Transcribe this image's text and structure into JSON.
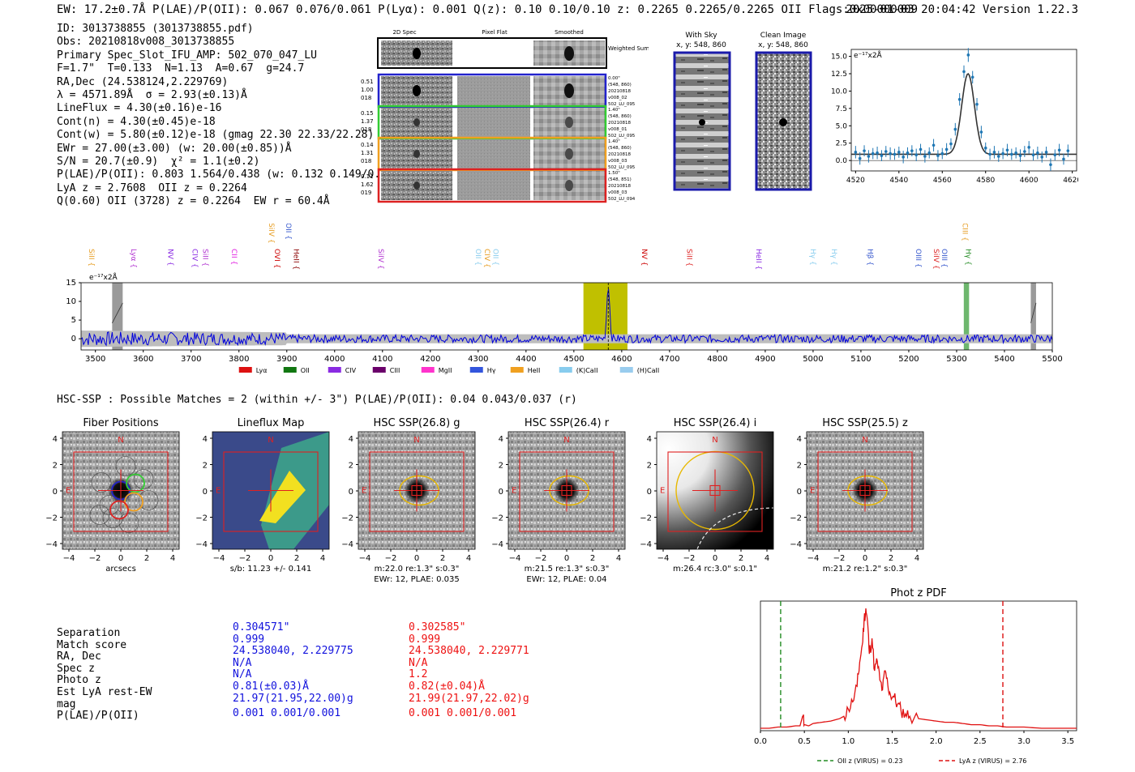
{
  "header": {
    "left": "EW: 17.2±0.7Å  P(LAE)/P(OII): 0.067 0.076/0.061  P(Lyα): 0.001  Q(z): 0.10 0.10/0.10  z: 0.2265 0.2265/0.2265 OII  Flags:0x00000009",
    "right": "2025-01-03 20:04:42  Version 1.22.3"
  },
  "info": {
    "lines": [
      "ID: 3013738855 (3013738855.pdf)",
      "Obs: 20210818v008_3013738855",
      "Primary Spec_Slot_IFU_AMP: 502_070_047_LU",
      "F=1.7\"  T=0.133  N=1.13  A=0.67  g=24.7",
      "RA,Dec (24.538124,2.229769)",
      "λ = 4571.89Å  σ = 2.93(±0.13)Å",
      "LineFlux = 4.30(±0.16)e-16",
      "Cont(n) = 4.30(±0.45)e-18",
      "Cont(w) = 5.80(±0.12)e-18 (gmag 22.30 22.33/22.28)",
      "EWr = 27.00(±3.00) (w: 20.00(±0.85))Å",
      "S/N = 20.7(±0.9)  χ² = 1.1(±0.2)",
      "P(LAE)/P(OII): 0.803 1.564/0.438 (w: 0.132 0.149/0.119)",
      "LyA z = 2.7608  OII z = 0.2264",
      "Q(0.60) OII (3728) z = 0.2264  EW r = 60.4Å"
    ]
  },
  "cutouts": {
    "col_titles": [
      "2D Spec",
      "Pixel Flat",
      "Smoothed"
    ],
    "weighted_sum": "Weighted Sum",
    "rows": [
      {
        "left": [
          "0.51",
          "1.00",
          "018"
        ],
        "right": [
          "0.00\"",
          "(548, 860)",
          "20210818",
          "v008_02",
          "502_LU_095"
        ],
        "color": "#2222cc"
      },
      {
        "left": [
          "0.15",
          "1.37",
          "018"
        ],
        "right": [
          "1.40\"",
          "(548, 860)",
          "20210818",
          "v008_01",
          "502_LU_095"
        ],
        "color": "#33cc33"
      },
      {
        "left": [
          "0.14",
          "1.31",
          "018"
        ],
        "right": [
          "1.40\"",
          "(548, 860)",
          "20210818",
          "v008_03",
          "502_LU_095"
        ],
        "color": "#f0a020"
      },
      {
        "left": [
          "0.11",
          "1.62",
          "019"
        ],
        "right": [
          "1.50\"",
          "(548, 851)",
          "20210818",
          "v008_03",
          "502_LU_094"
        ],
        "color": "#dd2222"
      }
    ]
  },
  "sky": {
    "title": "With Sky",
    "coords": "x, y: 548, 860"
  },
  "clean": {
    "title": "Clean Image",
    "coords": "x, y: 548, 860"
  },
  "icons": {
    "wavelength_marker": "dashed-line-marker"
  },
  "chart_data": [
    {
      "type": "line",
      "name": "line-fit",
      "yunit": "e⁻¹⁷x2Å",
      "xlim": [
        4518,
        4622
      ],
      "ylim": [
        -1.5,
        16
      ],
      "xticks": [
        4520,
        4540,
        4560,
        4580,
        4600,
        4620
      ],
      "yticks": [
        0.0,
        2.5,
        5.0,
        7.5,
        10.0,
        12.5,
        15.0
      ],
      "ytick_labels": [
        "0.0",
        "2.5",
        "5.0",
        "7.5",
        "10.0",
        "12.5",
        "15.0"
      ],
      "x": [
        4520,
        4522,
        4524,
        4526,
        4528,
        4530,
        4532,
        4534,
        4536,
        4538,
        4540,
        4542,
        4544,
        4546,
        4548,
        4550,
        4552,
        4554,
        4556,
        4558,
        4560,
        4562,
        4564,
        4566,
        4568,
        4570,
        4572,
        4574,
        4576,
        4578,
        4580,
        4582,
        4584,
        4586,
        4588,
        4590,
        4592,
        4594,
        4596,
        4598,
        4600,
        4602,
        4604,
        4606,
        4608,
        4610,
        4612,
        4614,
        4616,
        4618
      ],
      "y": [
        1.2,
        0.3,
        1.4,
        0.6,
        1.0,
        1.1,
        0.7,
        1.3,
        1.0,
        0.9,
        1.2,
        0.5,
        1.1,
        1.4,
        0.8,
        1.6,
        0.6,
        1.1,
        2.2,
        0.7,
        1.0,
        1.6,
        2.4,
        4.5,
        8.8,
        12.8,
        15.2,
        12.0,
        8.1,
        4.1,
        1.8,
        0.9,
        1.2,
        0.6,
        1.0,
        1.5,
        0.9,
        1.1,
        0.7,
        1.3,
        1.9,
        0.8,
        1.1,
        0.5,
        1.2,
        -0.6,
        0.8,
        1.5,
        0.2,
        1.4
      ],
      "err": [
        0.9,
        0.9,
        0.8,
        0.9,
        0.8,
        0.9,
        0.8,
        0.8,
        0.9,
        0.8,
        0.8,
        0.9,
        0.8,
        0.8,
        0.9,
        0.8,
        0.9,
        0.8,
        0.9,
        0.8,
        0.8,
        0.9,
        0.8,
        0.9,
        0.9,
        0.9,
        1.0,
        0.9,
        0.9,
        0.9,
        0.8,
        0.8,
        0.9,
        0.8,
        0.8,
        0.9,
        0.8,
        0.8,
        0.9,
        0.8,
        0.9,
        0.8,
        0.9,
        0.8,
        0.8,
        0.9,
        0.8,
        0.9,
        0.8,
        0.9
      ],
      "model": {
        "center": 4571.9,
        "sigma": 2.93,
        "amplitude": 11.6,
        "continuum": 0.9
      }
    },
    {
      "type": "line",
      "name": "full-spectrum",
      "yunit": "e⁻¹⁷x2Å",
      "xlim": [
        3470,
        5500
      ],
      "ylim": [
        -3,
        15
      ],
      "xticks": [
        3500,
        3600,
        3700,
        3800,
        3900,
        4000,
        4100,
        4200,
        4300,
        4400,
        4500,
        4600,
        4700,
        4800,
        4900,
        5000,
        5100,
        5200,
        5300,
        5400,
        5500
      ],
      "yticks": [
        0,
        5,
        10,
        15
      ],
      "highlight": [
        4520,
        4612
      ],
      "line_lambda": 4571.9,
      "peak": 14.5,
      "bad_regions": [
        [
          3535,
          3557
        ],
        [
          5455,
          5466
        ]
      ],
      "green_band": [
        5315,
        5326
      ],
      "lines": [
        {
          "name": "SiII",
          "lambda": 3492,
          "color": "#e69b1e"
        },
        {
          "name": "Lyα",
          "lambda": 3580,
          "color": "#b030d0"
        },
        {
          "name": "NV",
          "lambda": 3657,
          "color": "#8a2be2"
        },
        {
          "name": "CIV",
          "lambda": 3708,
          "color": "#8a2be2"
        },
        {
          "name": "SiII",
          "lambda": 3730,
          "color": "#b030d0"
        },
        {
          "name": "CII",
          "lambda": 3790,
          "color": "#e020e0"
        },
        {
          "name": "SiIV",
          "lambda": 3868,
          "color": "#e69b1e"
        },
        {
          "name": "OVI",
          "lambda": 3880,
          "color": "#cc0000"
        },
        {
          "name": "OII",
          "lambda": 3904,
          "color": "#3355cc"
        },
        {
          "name": "HeII",
          "lambda": 3920,
          "color": "#8b0000"
        },
        {
          "name": "SiIV",
          "lambda": 4097,
          "color": "#b030d0"
        },
        {
          "name": "OII",
          "lambda": 4300,
          "color": "#88ccee"
        },
        {
          "name": "CIV",
          "lambda": 4319,
          "color": "#e69b1e"
        },
        {
          "name": "OII",
          "lambda": 4337,
          "color": "#88ccee"
        },
        {
          "name": "NV",
          "lambda": 4648,
          "color": "#cc0000"
        },
        {
          "name": "SiII",
          "lambda": 4742,
          "color": "#dd2222"
        },
        {
          "name": "HeII",
          "lambda": 4887,
          "color": "#8a2be2"
        },
        {
          "name": "Hγ",
          "lambda": 5000,
          "color": "#88ccee"
        },
        {
          "name": "Hγ",
          "lambda": 5044,
          "color": "#88ccee"
        },
        {
          "name": "Hβ",
          "lambda": 5120,
          "color": "#3355cc"
        },
        {
          "name": "OIII",
          "lambda": 5220,
          "color": "#3355cc"
        },
        {
          "name": "SiIV",
          "lambda": 5258,
          "color": "#dd2222"
        },
        {
          "name": "OIII",
          "lambda": 5275,
          "color": "#3355cc"
        },
        {
          "name": "CIII",
          "lambda": 5318,
          "color": "#e69b1e"
        },
        {
          "name": "Hγ",
          "lambda": 5325,
          "color": "#228b22"
        }
      ],
      "legend": [
        {
          "name": "Lyα",
          "color": "#dd1111"
        },
        {
          "name": "OII",
          "color": "#117711"
        },
        {
          "name": "CIV",
          "color": "#8a2be2"
        },
        {
          "name": "CIII",
          "color": "#6a006a"
        },
        {
          "name": "MgII",
          "color": "#ff33cc"
        },
        {
          "name": "Hγ",
          "color": "#3355dd"
        },
        {
          "name": "HeII",
          "color": "#f0a020"
        },
        {
          "name": "(K)CaII",
          "color": "#88ccee"
        },
        {
          "name": "(H)CaII",
          "color": "#99ccee"
        }
      ]
    },
    {
      "type": "line",
      "name": "phot-z-pdf",
      "title": "Phot z PDF",
      "xlim": [
        0,
        3.6
      ],
      "xticks": [
        0.0,
        0.5,
        1.0,
        1.5,
        2.0,
        2.5,
        3.0,
        3.5
      ],
      "vlines": [
        {
          "label": "OII z (VIRUS) = 0.23",
          "x": 0.23,
          "color": "#228b22"
        },
        {
          "label": "LyA z (VIRUS) = 2.76",
          "x": 2.76,
          "color": "#dd1111"
        }
      ],
      "x": [
        0.0,
        0.1,
        0.2,
        0.3,
        0.4,
        0.45,
        0.48,
        0.5,
        0.55,
        0.6,
        0.7,
        0.8,
        0.9,
        0.95,
        1.0,
        1.05,
        1.1,
        1.13,
        1.16,
        1.18,
        1.2,
        1.22,
        1.24,
        1.27,
        1.3,
        1.33,
        1.36,
        1.39,
        1.42,
        1.45,
        1.48,
        1.52,
        1.56,
        1.6,
        1.65,
        1.7,
        1.8,
        1.9,
        2.0,
        2.1,
        2.2,
        2.3,
        2.4,
        2.5,
        2.6,
        2.7,
        2.8,
        3.0,
        3.2,
        3.4,
        3.6
      ],
      "y": [
        0.0,
        0.0,
        0.01,
        0.01,
        0.02,
        0.02,
        0.1,
        0.03,
        0.02,
        0.04,
        0.05,
        0.06,
        0.08,
        0.1,
        0.16,
        0.22,
        0.35,
        0.55,
        0.7,
        0.9,
        1.0,
        0.88,
        0.62,
        0.75,
        0.48,
        0.56,
        0.4,
        0.32,
        0.48,
        0.36,
        0.28,
        0.26,
        0.2,
        0.15,
        0.12,
        0.1,
        0.08,
        0.07,
        0.06,
        0.05,
        0.05,
        0.04,
        0.03,
        0.03,
        0.02,
        0.02,
        0.01,
        0.01,
        0.0,
        0.0,
        0.0
      ]
    }
  ],
  "hsc": {
    "header": "HSC-SSP : Possible Matches = 2 (within +/- 3\")  P(LAE)/P(OII): 0.04 0.043/0.037 (r)",
    "panels": [
      {
        "title": "Fiber Positions",
        "caption": "arcsecs",
        "caption2": ""
      },
      {
        "title": "Lineflux Map",
        "caption": "s/b: 11.23 +/- 0.141",
        "caption2": ""
      },
      {
        "title": "HSC SSP(26.8) g",
        "caption": "m:22.0  re:1.3\"  s:0.3\"",
        "caption2": "EWr: 12, PLAE: 0.035"
      },
      {
        "title": "HSC SSP(26.4) r",
        "caption": "m:21.5  re:1.3\"  s:0.3\"",
        "caption2": "EWr: 12, PLAE: 0.04"
      },
      {
        "title": "HSC SSP(26.4) i",
        "caption": "m:26.4 rc:3.0\"  s:0.1\"",
        "caption2": ""
      },
      {
        "title": "HSC SSP(25.5) z",
        "caption": "m:21.2  re:1.2\"  s:0.3\"",
        "caption2": ""
      }
    ],
    "axis_ticks": [
      "4",
      "2",
      "0",
      "−2",
      "−4"
    ],
    "x_ticks": [
      "−4",
      "−2",
      "0",
      "2",
      "4"
    ],
    "compass": {
      "n": "N",
      "e": "E"
    }
  },
  "matches": {
    "labels": [
      "Separation",
      "Match score",
      "RA, Dec",
      "Spec z",
      "Photo z",
      "Est LyA rest-EW",
      "mag",
      "P(LAE)/P(OII)"
    ],
    "col1": [
      "0.304571\"",
      "0.999",
      "24.538040, 2.229775",
      "N/A",
      "N/A",
      "0.81(±0.03)Å",
      "21.97(21.95,22.00)g",
      "0.001 0.001/0.001"
    ],
    "col2": [
      "0.302585\"",
      "0.999",
      "24.538040, 2.229771",
      "N/A",
      "1.2",
      "0.82(±0.04)Å",
      "21.99(21.97,22.02)g",
      "0.001 0.001/0.001"
    ],
    "col1_color": "#1111dd",
    "col2_color": "#ee1111"
  }
}
